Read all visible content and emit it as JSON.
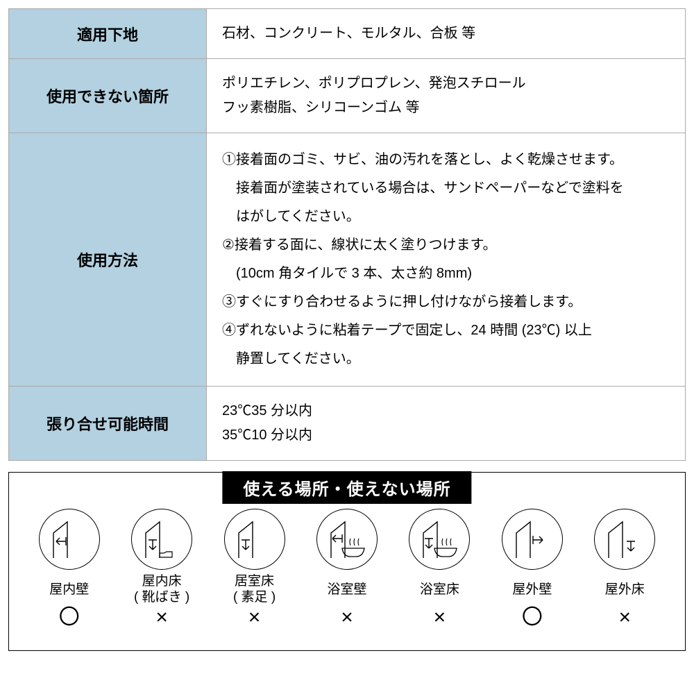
{
  "spec_table": {
    "rows": [
      {
        "label": "適用下地",
        "value": "石材、コンクリート、モルタル、合板 等",
        "multiline": false
      },
      {
        "label": "使用できない箇所",
        "value": "ポリエチレン、ポリプロプレン、発泡スチロール\nフッ素樹脂、シリコーンゴム 等",
        "multiline": false
      },
      {
        "label": "使用方法",
        "value": "①接着面のゴミ、サビ、油の汚れを落とし、よく乾燥させます。\n　接着面が塗装されている場合は、サンドペーパーなどで塗料を\n　はがしてください。\n②接着する面に、線状に太く塗りつけます。\n　(10cm 角タイルで 3 本、太さ約 8mm)\n③すぐにすり合わせるように押し付けながら接着します。\n④ずれないように粘着テープで固定し、24 時間 (23℃) 以上\n　静置してください。",
        "multiline": true
      },
      {
        "label": "張り合せ可能時間",
        "value": "23℃35 分以内\n35℃10 分以内",
        "multiline": false
      }
    ],
    "label_bg": "#b3d1e0",
    "border_color": "#aaaaaa",
    "label_fontsize": 22,
    "value_fontsize": 20
  },
  "usage": {
    "title": "使える場所・使えない場所",
    "title_bg": "#000000",
    "title_color": "#ffffff",
    "circle_mark": "〇",
    "cross_mark": "×",
    "items": [
      {
        "label": "屋内壁",
        "mark": "〇",
        "icon": "indoor-wall"
      },
      {
        "label": "屋内床\n( 靴ばき )",
        "mark": "×",
        "icon": "indoor-floor-shoes"
      },
      {
        "label": "居室床\n( 素足 )",
        "mark": "×",
        "icon": "indoor-floor-bare"
      },
      {
        "label": "浴室壁",
        "mark": "×",
        "icon": "bath-wall"
      },
      {
        "label": "浴室床",
        "mark": "×",
        "icon": "bath-floor"
      },
      {
        "label": "屋外壁",
        "mark": "〇",
        "icon": "outdoor-wall"
      },
      {
        "label": "屋外床",
        "mark": "×",
        "icon": "outdoor-floor"
      }
    ]
  },
  "colors": {
    "bg": "#ffffff",
    "text": "#000000"
  }
}
